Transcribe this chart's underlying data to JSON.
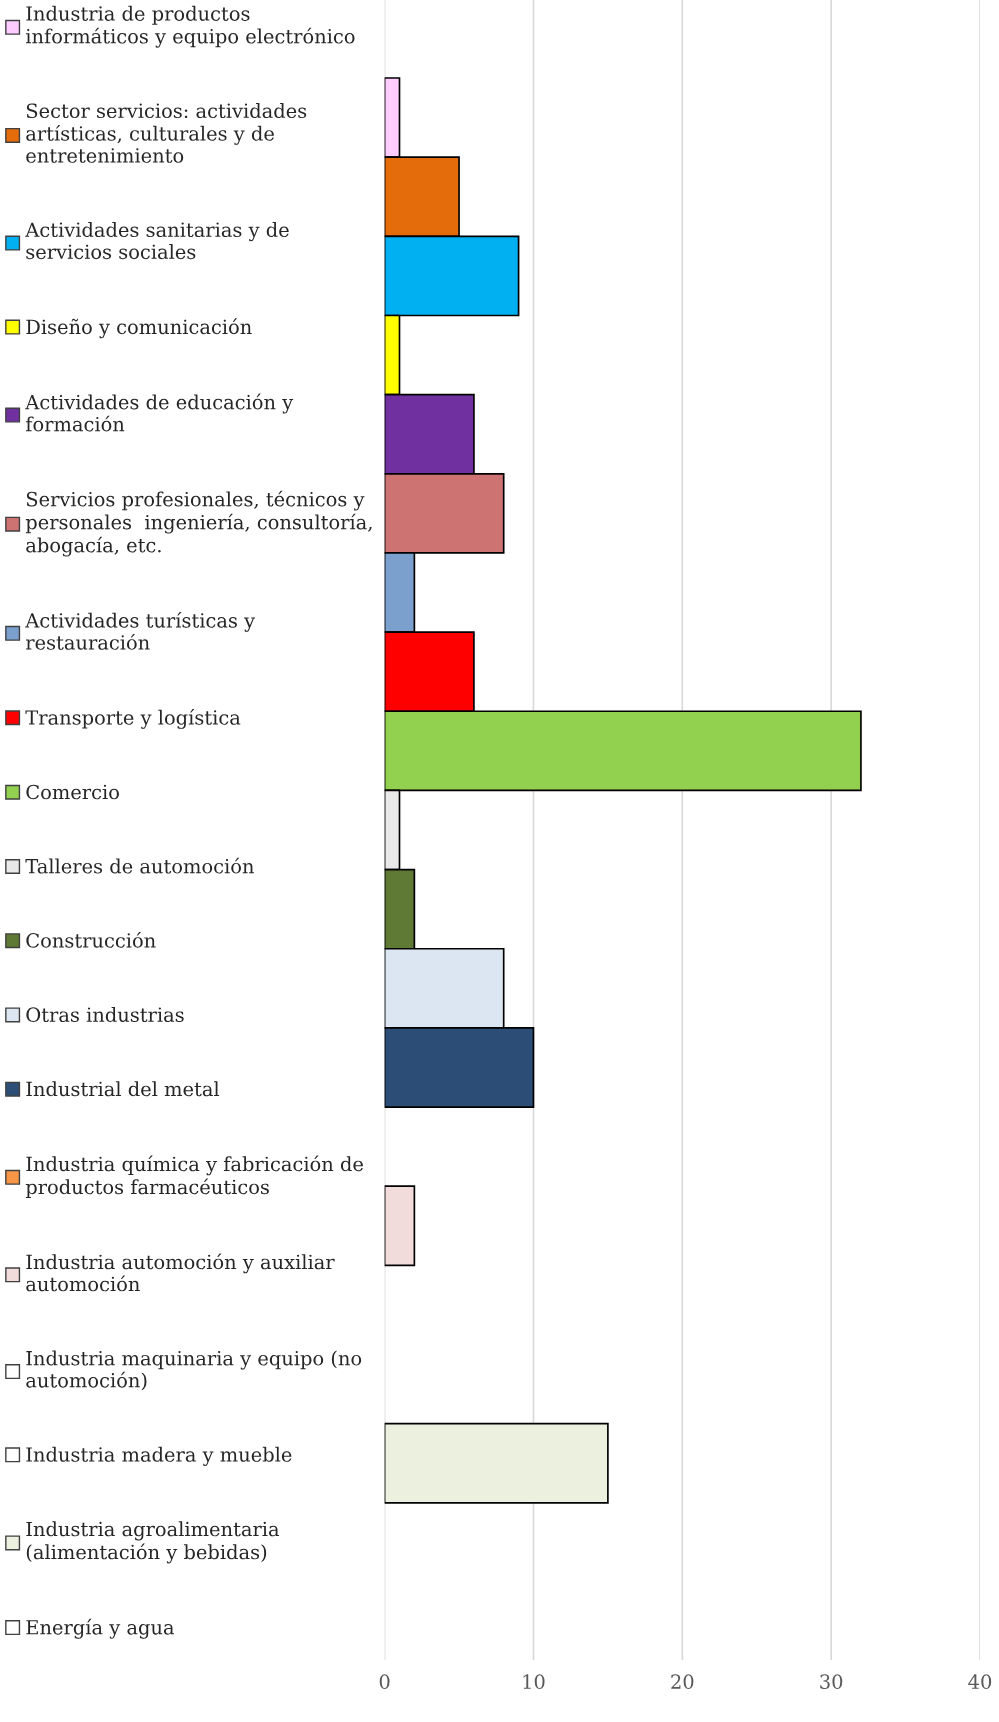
{
  "chart_data": {
    "type": "bar",
    "orientation": "horizontal",
    "categories": [
      null
    ],
    "series": [
      {
        "name": "Industria de productos informáticos y equipo electrónico",
        "color": "#ffccff",
        "values": [
          1
        ]
      },
      {
        "name": "Sector servicios: actividades artísticas, culturales y de entretenimiento",
        "color": "#e46c0a",
        "values": [
          5
        ]
      },
      {
        "name": "Actividades sanitarias y de servicios sociales",
        "color": "#00b0f0",
        "values": [
          9
        ]
      },
      {
        "name": "Diseño y comunicación",
        "color": "#ffff00",
        "values": [
          1
        ]
      },
      {
        "name": "Actividades de educación y formación",
        "color": "#7030a0",
        "values": [
          6
        ]
      },
      {
        "name": "Servicios profesionales, técnicos y personales  ingeniería, consultoría, abogacía, etc.",
        "color": "#cd7371",
        "values": [
          8
        ]
      },
      {
        "name": "Actividades turísticas y restauración",
        "color": "#7ba0cd",
        "values": [
          2
        ]
      },
      {
        "name": "Transporte y logística",
        "color": "#ff0000",
        "values": [
          6
        ]
      },
      {
        "name": "Comercio",
        "color": "#92d050",
        "values": [
          32
        ]
      },
      {
        "name": "Talleres de automoción",
        "color": "#e9e9e9",
        "values": [
          1
        ]
      },
      {
        "name": "Construcción",
        "color": "#5e7a34",
        "values": [
          2
        ]
      },
      {
        "name": "Otras industrias",
        "color": "#dce6f2",
        "values": [
          8
        ]
      },
      {
        "name": "Industrial del metal",
        "color": "#2c4d75",
        "values": [
          10
        ]
      },
      {
        "name": "Industria química y fabricación de productos farmacéuticos",
        "color": "#f79646",
        "values": [
          0
        ]
      },
      {
        "name": "Industria automoción y auxiliar automoción",
        "color": "#f2dcdb",
        "values": [
          2
        ]
      },
      {
        "name": "Industria maquinaria y equipo (no automoción)",
        "color": "#ffffff",
        "values": [
          0
        ]
      },
      {
        "name": "Industria madera y mueble",
        "color": "#ffffff",
        "values": [
          0
        ]
      },
      {
        "name": "Industria agroalimentaria (alimentación y bebidas)",
        "color": "#ebf1de",
        "values": [
          15
        ]
      },
      {
        "name": "Energía y agua",
        "color": "#ffffff",
        "values": [
          0
        ]
      }
    ],
    "xlim": [
      0,
      40
    ],
    "xticks": [
      0,
      10,
      20,
      30,
      40
    ],
    "grid": "x",
    "legend": "left"
  }
}
